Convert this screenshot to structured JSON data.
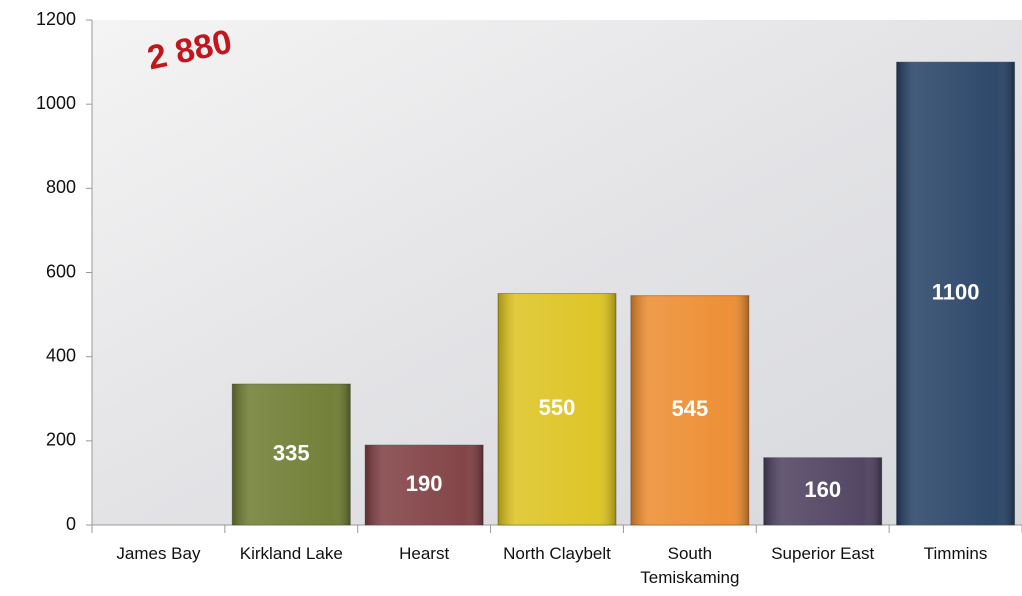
{
  "chart_data": {
    "type": "bar",
    "categories": [
      "James Bay",
      "Kirkland Lake",
      "Hearst",
      "North Claybelt",
      "South Temiskaming",
      "Superior East",
      "Timmins"
    ],
    "values": [
      null,
      335,
      190,
      550,
      545,
      160,
      1100
    ],
    "colors": [
      "#888888",
      "#6b7a2e",
      "#7d3b3f",
      "#dcc21c",
      "#ec8a2c",
      "#4a3d5c",
      "#233f63"
    ],
    "ylim": [
      0,
      1200
    ],
    "yticks": [
      0,
      200,
      400,
      600,
      800,
      1000,
      1200
    ],
    "annotation": "2 880"
  }
}
